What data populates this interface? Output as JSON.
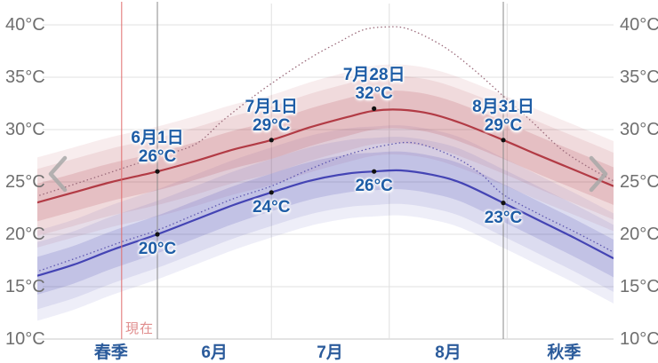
{
  "chart_data": {
    "type": "line",
    "description_unit": "°C",
    "y_axis": {
      "unit": "°C",
      "ticks": [
        40,
        35,
        30,
        25,
        20,
        15,
        10
      ],
      "range": [
        10,
        40
      ],
      "grid": true,
      "labels_both_sides": true
    },
    "x_axis": {
      "day_zero_date": "6月1日",
      "range_days": [
        -31.6,
        120
      ],
      "month_gridline_days": [
        0,
        30,
        61,
        92
      ],
      "labels": [
        {
          "text": "春季",
          "day": -12.2
        },
        {
          "text": "6月",
          "day": 15
        },
        {
          "text": "7月",
          "day": 45.4
        },
        {
          "text": "8月",
          "day": 76.5
        },
        {
          "text": "秋季",
          "day": 107
        }
      ]
    },
    "series": [
      {
        "name": "average-high",
        "style": "solid",
        "color": "#b23b45",
        "points": [
          [
            -32,
            23
          ],
          [
            -22,
            24
          ],
          [
            -12,
            25
          ],
          [
            0,
            26
          ],
          [
            10,
            27
          ],
          [
            20,
            28.1
          ],
          [
            30,
            29
          ],
          [
            40,
            30.2
          ],
          [
            50,
            31.2
          ],
          [
            57,
            31.8
          ],
          [
            64,
            31.9
          ],
          [
            72,
            31.5
          ],
          [
            80,
            30.6
          ],
          [
            91,
            29
          ],
          [
            100,
            27.6
          ],
          [
            110,
            26.1
          ],
          [
            120,
            24.6
          ]
        ]
      },
      {
        "name": "average-low",
        "style": "solid",
        "color": "#4444b4",
        "points": [
          [
            -32,
            16
          ],
          [
            -22,
            17.1
          ],
          [
            -12,
            18.5
          ],
          [
            0,
            20
          ],
          [
            10,
            21.4
          ],
          [
            20,
            22.8
          ],
          [
            30,
            24
          ],
          [
            40,
            25.1
          ],
          [
            50,
            25.8
          ],
          [
            57,
            26
          ],
          [
            64,
            26.1
          ],
          [
            72,
            25.7
          ],
          [
            80,
            24.9
          ],
          [
            91,
            23
          ],
          [
            100,
            21.4
          ],
          [
            110,
            19.6
          ],
          [
            120,
            17.7
          ]
        ]
      },
      {
        "name": "dotted-high",
        "style": "dotted",
        "color": "#9b6b7b",
        "points": [
          [
            -32,
            23.6
          ],
          [
            -20,
            25.0
          ],
          [
            -10,
            26.2
          ],
          [
            0,
            27.4
          ],
          [
            10,
            28.6
          ],
          [
            17,
            30.8
          ],
          [
            24,
            32.8
          ],
          [
            30,
            34.4
          ],
          [
            40,
            36.8
          ],
          [
            48,
            38.4
          ],
          [
            54,
            39.5
          ],
          [
            60,
            39.8
          ],
          [
            66,
            39.6
          ],
          [
            75,
            38.0
          ],
          [
            83,
            35.8
          ],
          [
            91,
            33.2
          ],
          [
            99,
            30.6
          ],
          [
            106,
            28.2
          ],
          [
            113,
            26.5
          ],
          [
            120,
            25.1
          ]
        ]
      },
      {
        "name": "dotted-low",
        "style": "dotted",
        "color": "#5f58b0",
        "points": [
          [
            -32,
            16.4
          ],
          [
            -20,
            17.9
          ],
          [
            -10,
            19.2
          ],
          [
            0,
            20.4
          ],
          [
            10,
            21.9
          ],
          [
            20,
            23.4
          ],
          [
            30,
            24.6
          ],
          [
            40,
            26.2
          ],
          [
            50,
            27.6
          ],
          [
            60,
            28.5
          ],
          [
            68,
            28.7
          ],
          [
            78,
            27.4
          ],
          [
            85,
            25.8
          ],
          [
            91,
            23.8
          ],
          [
            100,
            22.0
          ],
          [
            110,
            20.2
          ],
          [
            120,
            18.3
          ]
        ]
      }
    ],
    "bands": {
      "applies_to": [
        "average-high",
        "average-low"
      ],
      "deltas_deg": [
        4.3,
        3.2,
        1.8
      ],
      "alphas": [
        0.09,
        0.1,
        0.17
      ]
    },
    "annotations": {
      "high_points": [
        {
          "day": 0,
          "date": "6月1日",
          "temp": 26
        },
        {
          "day": 30,
          "date": "7月1日",
          "temp": 29
        },
        {
          "day": 57,
          "date": "7月28日",
          "temp": 32
        },
        {
          "day": 91,
          "date": "8月31日",
          "temp": 29
        }
      ],
      "low_points": [
        {
          "day": 0,
          "temp": 20
        },
        {
          "day": 30,
          "temp": 24
        },
        {
          "day": 57,
          "temp": 26
        },
        {
          "day": 91,
          "temp": 23
        }
      ]
    },
    "now_line": {
      "day": -9.4,
      "label": "現在",
      "color": "#e06c6c"
    },
    "marker_days": [
      0,
      91
    ],
    "colors": {
      "grid": "#e0e0e0",
      "axis": "#c9c9c9",
      "marker_line": "#8a8a8a",
      "dot": "#111111",
      "y_tick_text": "#6f6f6f",
      "x_label_text": "#2b5b9b",
      "annotation_text": "#1e5da6",
      "now_label_text": "#e08d8d",
      "chevron": "#a8a8a8"
    }
  },
  "nav": {
    "prev_icon": "chevron-left",
    "next_icon": "chevron-right"
  }
}
